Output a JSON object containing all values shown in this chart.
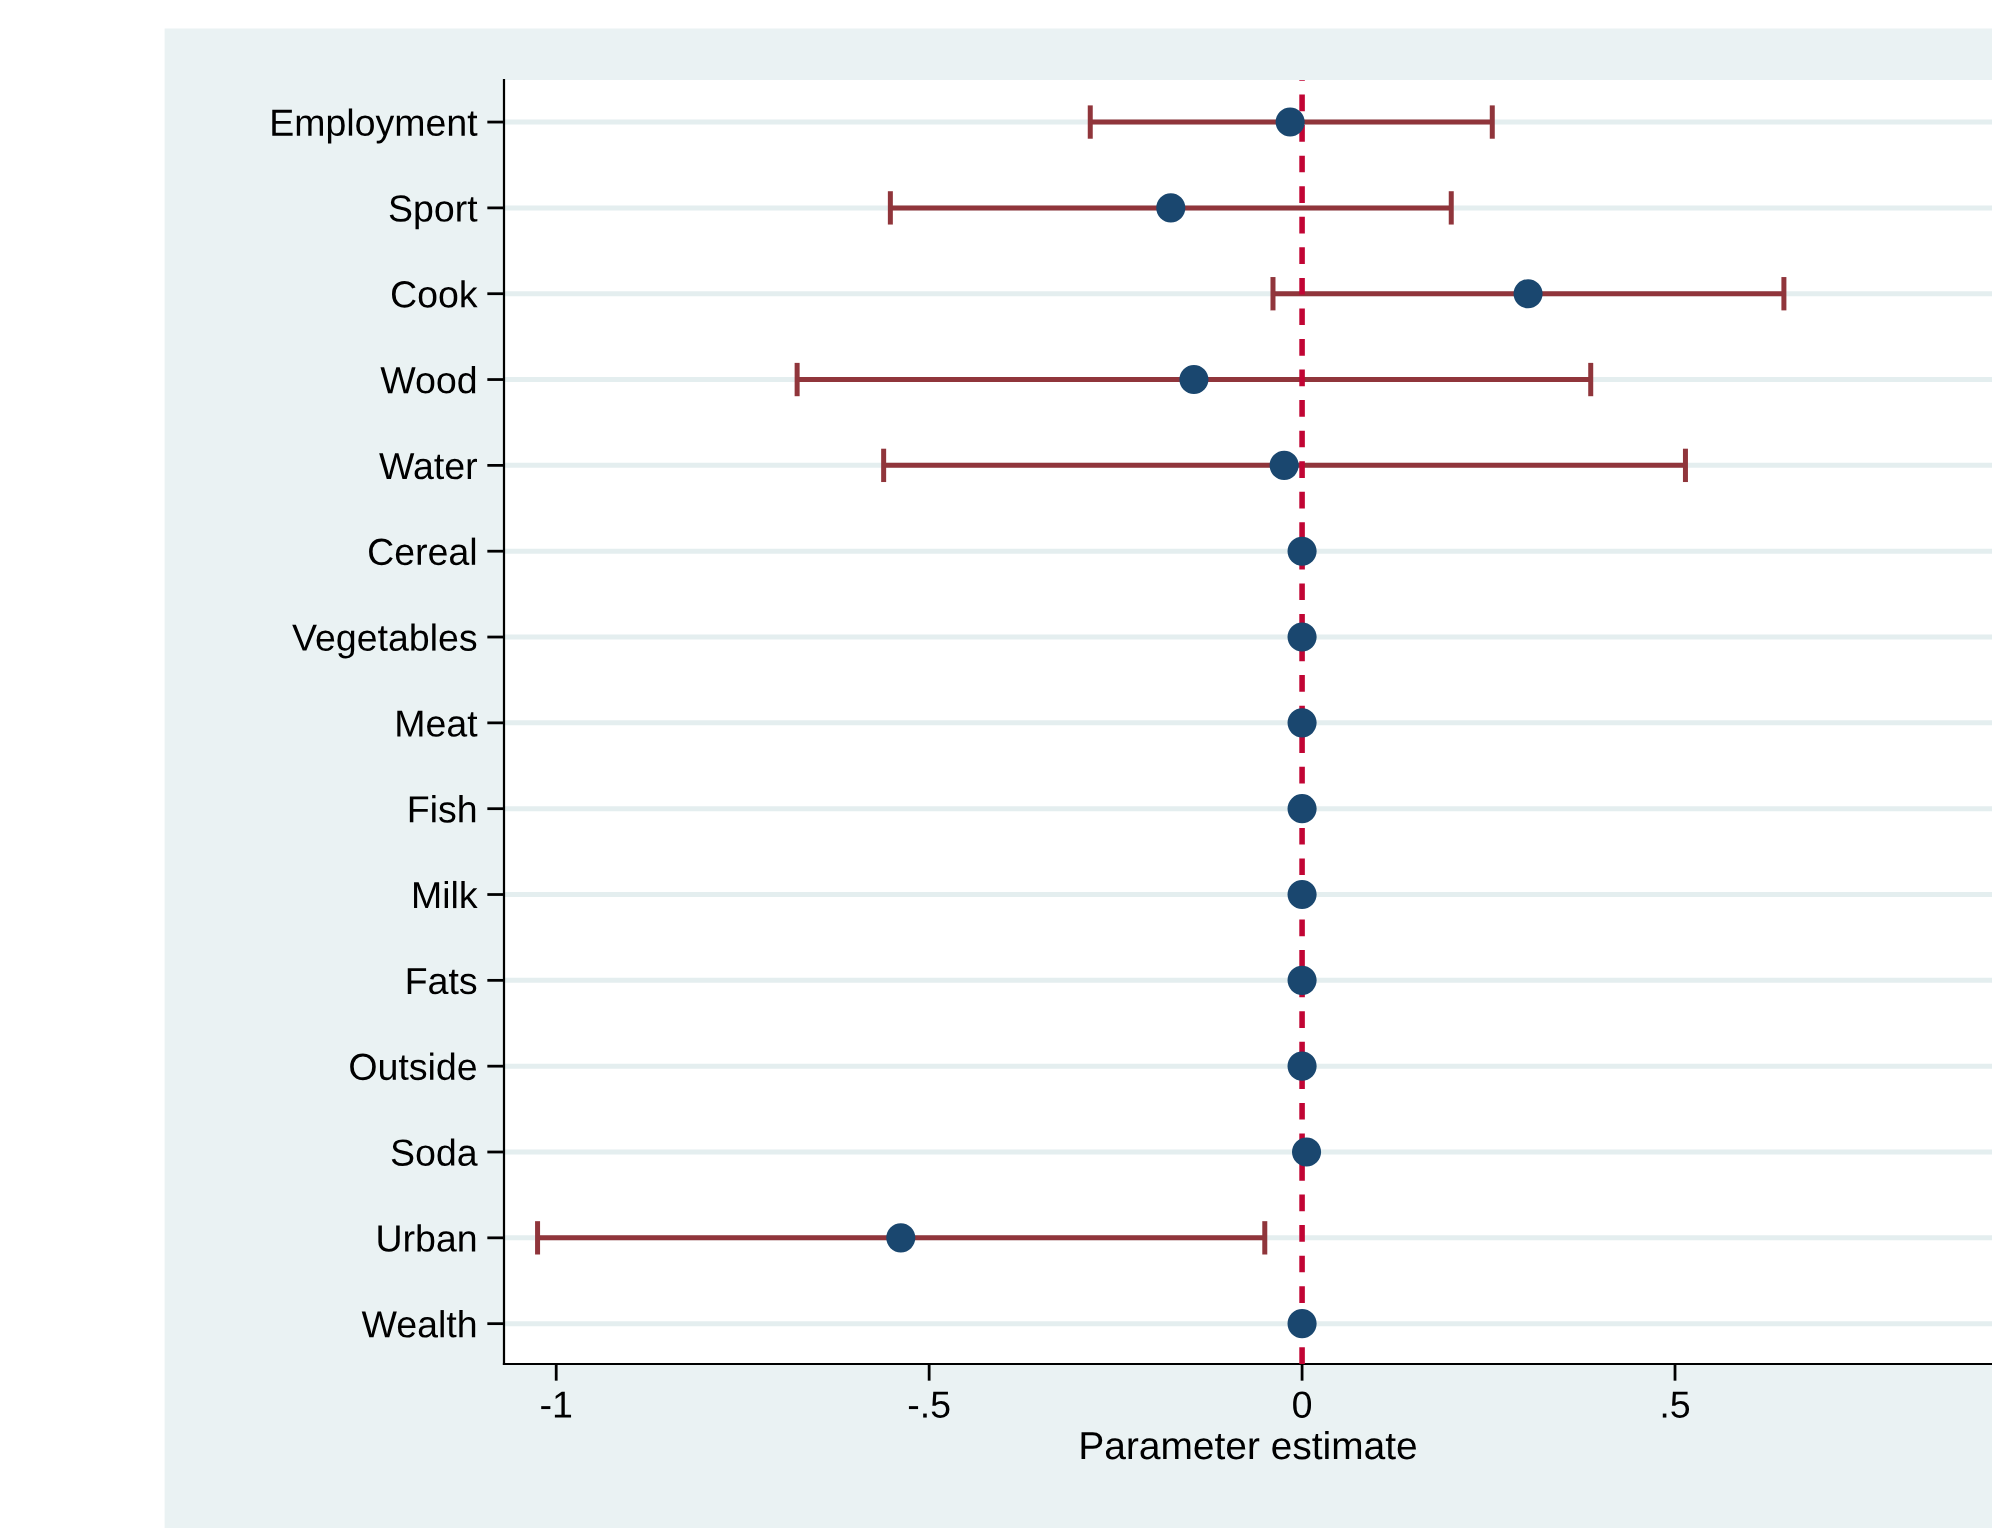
{
  "chart_data": {
    "type": "scatter",
    "orientation": "horizontal",
    "xlabel": "Parameter estimate",
    "categories": [
      "Employment",
      "Sport",
      "Cook",
      "Wood",
      "Water",
      "Cereal",
      "Vegetables",
      "Meat",
      "Fish",
      "Milk",
      "Fats",
      "Outside",
      "Soda",
      "Urban",
      "Wealth"
    ],
    "values": [
      -0.016,
      -0.176,
      0.303,
      -0.145,
      -0.024,
      0,
      0,
      0,
      0,
      0,
      0,
      0,
      0.006,
      -0.538,
      0
    ],
    "errors": [
      [
        -0.284,
        0.255
      ],
      [
        -0.552,
        0.2
      ],
      [
        -0.039,
        0.646
      ],
      [
        -0.677,
        0.387
      ],
      [
        -0.561,
        0.514
      ],
      null,
      null,
      null,
      null,
      null,
      null,
      null,
      null,
      [
        -1.025,
        -0.05
      ],
      null
    ],
    "color": "#1a476f",
    "marker": "circle",
    "xlim": [
      -1.07,
      0.925
    ],
    "xticks": [
      -1,
      {
        "value": -0.5,
        "label": "-.5"
      },
      0,
      {
        "value": 0.5,
        "label": ".5"
      }
    ],
    "grid": "y",
    "legend": false,
    "ref_lines": [
      {
        "axis": "x",
        "value": 0,
        "color": "#c10534",
        "line_style": "dashed"
      }
    ]
  }
}
